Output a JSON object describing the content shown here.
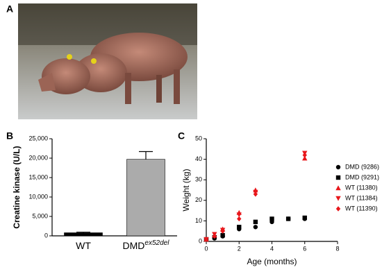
{
  "panel_labels": [
    "A",
    "B",
    "C"
  ],
  "chart_data": [
    {
      "type": "bar",
      "ylabel": "Creatine kinase (U/L)",
      "categories": [
        "WT",
        "DMD"
      ],
      "category_superscripts": [
        null,
        "ex52del"
      ],
      "values": [
        800,
        19700
      ],
      "errors": [
        150,
        2000
      ],
      "colors": [
        "#000000",
        "#ababab"
      ],
      "ylim": [
        0,
        25000
      ],
      "yticks": [
        0,
        {
          "value": 5000,
          "label": "5,000"
        },
        {
          "value": 10000,
          "label": "10,000"
        },
        {
          "value": 15000,
          "label": "15,000"
        },
        {
          "value": 20000,
          "label": "20,000"
        },
        {
          "value": 25000,
          "label": "25,000"
        }
      ]
    },
    {
      "type": "scatter",
      "xlabel": "Age (months)",
      "ylabel": "Weight (kg)",
      "xlim": [
        0,
        8
      ],
      "xticks": [
        0,
        2,
        4,
        6,
        8
      ],
      "ylim": [
        0,
        50
      ],
      "yticks": [
        0,
        10,
        20,
        30,
        40,
        50
      ],
      "series": [
        {
          "name": "DMD (9286)",
          "color": "#000000",
          "marker": "circle",
          "x": [
            0,
            0.5,
            1,
            2,
            3,
            4,
            5,
            6
          ],
          "values": [
            1,
            1.5,
            2.5,
            6,
            7,
            9.5,
            11,
            11
          ]
        },
        {
          "name": "DMD (9291)",
          "color": "#000000",
          "marker": "square",
          "x": [
            0,
            0.5,
            1,
            2,
            3,
            4,
            5,
            6
          ],
          "values": [
            1,
            2,
            3,
            7,
            9.5,
            11,
            11,
            11.5
          ]
        },
        {
          "name": "WT (11380)",
          "color": "#e8171b",
          "marker": "triangle-up",
          "x": [
            0,
            0.5,
            1,
            2,
            3,
            6
          ],
          "values": [
            1,
            3,
            6,
            14,
            25,
            40.5
          ]
        },
        {
          "name": "WT (11384)",
          "color": "#e8171b",
          "marker": "triangle-down",
          "x": [
            0,
            0.5,
            1,
            2,
            3,
            6
          ],
          "values": [
            1,
            3.5,
            5.5,
            13,
            24,
            43
          ]
        },
        {
          "name": "WT (11390)",
          "color": "#e8171b",
          "marker": "diamond",
          "x": [
            0,
            0.5,
            1,
            2,
            3,
            6
          ],
          "values": [
            1,
            2.5,
            5,
            11,
            23,
            42
          ]
        }
      ]
    }
  ]
}
